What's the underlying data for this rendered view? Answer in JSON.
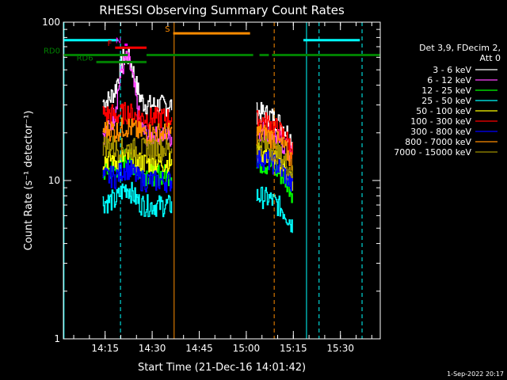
{
  "chart_data": {
    "type": "line",
    "title": "RHESSI Observing Summary Count Rates",
    "xlabel": "Start Time (21-Dec-16 14:01:42)",
    "ylabel": "Count Rate (s⁻¹ detector⁻¹)",
    "ylog": true,
    "ylim": [
      1,
      100
    ],
    "xlim_minutes": [
      0,
      101
    ],
    "yticks": [
      {
        "v": 1,
        "label": "1"
      },
      {
        "v": 10,
        "label": "10"
      },
      {
        "v": 100,
        "label": "100"
      }
    ],
    "xticks": [
      {
        "m": 13.3,
        "label": "14:15"
      },
      {
        "m": 28.3,
        "label": "14:30"
      },
      {
        "m": 43.3,
        "label": "14:45"
      },
      {
        "m": 58.3,
        "label": "15:00"
      },
      {
        "m": 73.3,
        "label": "15:15"
      },
      {
        "m": 88.3,
        "label": "15:30"
      }
    ],
    "legend_header": [
      "Det 3,9, FDecim 2,",
      "Att 0"
    ],
    "series": [
      {
        "name": "3 - 6 keV",
        "color": "#ffffff",
        "base": 30,
        "base2": 27,
        "peak": 62
      },
      {
        "name": "6 - 12 keV",
        "color": "#ff44ff",
        "base": 19,
        "base2": 21,
        "peak": 58
      },
      {
        "name": "12 - 25 keV",
        "color": "#00ff00",
        "base": 11,
        "base2": 13,
        "peak": 14
      },
      {
        "name": "25 - 50 keV",
        "color": "#00ffff",
        "base": 7,
        "base2": 8,
        "peak": 9
      },
      {
        "name": "50 - 100 keV",
        "color": "#ffff00",
        "base": 13,
        "base2": 15,
        "peak": 14
      },
      {
        "name": "100 - 300 keV",
        "color": "#ff0000",
        "base": 25,
        "base2": 24,
        "peak": 27
      },
      {
        "name": "300 - 800 keV",
        "color": "#0000ff",
        "base": 10,
        "base2": 14,
        "peak": 12
      },
      {
        "name": "800 - 7000 keV",
        "color": "#ff8c00",
        "base": 20,
        "base2": 20,
        "peak": 22
      },
      {
        "name": "7000 - 15000 keV",
        "color": "#a09000",
        "base": 16,
        "base2": 17,
        "peak": 16
      }
    ],
    "data_segments": [
      [
        12.5,
        34.5
      ],
      [
        61.5,
        73.0
      ]
    ],
    "flag_bars": [
      {
        "label": "",
        "color": "#00ffff",
        "y": 77,
        "segments": [
          [
            0,
            17.5
          ],
          [
            76.5,
            94.5
          ]
        ]
      },
      {
        "label": "S",
        "color": "#ff8c00",
        "y": 85,
        "segments": [
          [
            35,
            59.5
          ]
        ]
      },
      {
        "label": "F",
        "color": "#ff0000",
        "y": 69,
        "segments": [
          [
            16.5,
            26.5
          ]
        ]
      },
      {
        "label": "N",
        "color": "#ff00ff",
        "y": 72,
        "segments": [
          [
            19.5,
            20.5
          ]
        ]
      },
      {
        "label": "RD0",
        "color": "#008000",
        "y": 62,
        "segments": [
          [
            0,
            20.5
          ],
          [
            26.5,
            60.5
          ],
          [
            62.5,
            65.5
          ],
          [
            66.5,
            101
          ]
        ]
      },
      {
        "label": "RD6",
        "color": "#008000",
        "y": 56,
        "segments": [
          [
            10.5,
            26.5
          ]
        ]
      }
    ],
    "vlines_solid": [
      {
        "m": 0.2,
        "color": "#00ffff"
      },
      {
        "m": 35.3,
        "color": "#ff8c00"
      },
      {
        "m": 77.5,
        "color": "#00ffff"
      }
    ],
    "vlines_dashed": [
      {
        "m": 18.2,
        "color": "#00ffff"
      },
      {
        "m": 67.2,
        "color": "#ff8c00"
      },
      {
        "m": 81.5,
        "color": "#00ffff"
      },
      {
        "m": 95.2,
        "color": "#00ffff"
      }
    ],
    "grid": false,
    "legend_position": "right"
  },
  "footer_date": "1-Sep-2022 20:17"
}
